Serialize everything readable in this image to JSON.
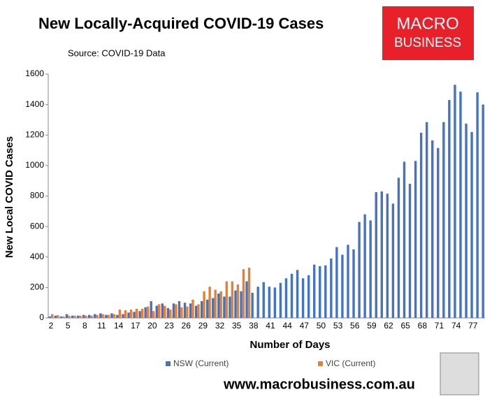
{
  "chart_data": {
    "type": "bar",
    "title": "New Locally-Acquired COVID-19 Cases",
    "subtitle": "Source: COVID-19 Data",
    "x_label": "Number of Days",
    "y_label": "New Local COVID Cases",
    "categories": [
      "2",
      null,
      null,
      "5",
      null,
      null,
      "8",
      null,
      null,
      "11",
      null,
      null,
      "14",
      null,
      null,
      "17",
      null,
      null,
      "20",
      null,
      null,
      "23",
      null,
      null,
      "26",
      null,
      null,
      "29",
      null,
      null,
      "32",
      null,
      null,
      "35",
      null,
      null,
      "38",
      null,
      null,
      "41",
      null,
      null,
      "44",
      null,
      null,
      "47",
      null,
      null,
      "50",
      null,
      null,
      "53",
      null,
      null,
      "56",
      null,
      null,
      "59",
      null,
      null,
      "62",
      null,
      null,
      "65",
      null,
      null,
      "68",
      null,
      null,
      "71",
      null,
      null,
      "74",
      null,
      null,
      "77",
      null,
      null
    ],
    "series": [
      {
        "name": "NSW (Current)",
        "color": "#4472c4",
        "values": [
          10,
          15,
          10,
          25,
          15,
          15,
          20,
          20,
          25,
          30,
          20,
          30,
          20,
          25,
          35,
          40,
          45,
          70,
          110,
          80,
          95,
          65,
          95,
          110,
          100,
          95,
          80,
          110,
          120,
          130,
          160,
          140,
          140,
          180,
          175,
          240,
          165,
          205,
          235,
          205,
          200,
          230,
          260,
          290,
          315,
          260,
          280,
          350,
          340,
          345,
          390,
          465,
          415,
          480,
          450,
          630,
          680,
          640,
          825,
          830,
          815,
          750,
          920,
          1025,
          880,
          1030,
          1215,
          1285,
          1165,
          1115,
          1285,
          1430,
          1530,
          1485,
          1275,
          1220,
          1480,
          1400
        ]
      },
      {
        "name": "VIC (Current)",
        "color": "#ed7d31",
        "values": [
          25,
          18,
          10,
          15,
          15,
          15,
          15,
          15,
          20,
          25,
          20,
          25,
          55,
          50,
          55,
          60,
          60,
          75,
          45,
          90,
          80,
          55,
          90,
          70,
          75,
          120,
          90,
          175,
          205,
          185,
          175,
          240,
          240,
          220,
          320,
          330,
          null,
          null,
          null,
          null,
          null,
          null,
          null,
          null,
          null,
          null,
          null,
          null,
          null,
          null,
          null,
          null,
          null,
          null,
          null,
          null,
          null,
          null,
          null,
          null,
          null,
          null,
          null,
          null,
          null,
          null,
          null,
          null,
          null,
          null,
          null,
          null,
          null,
          null,
          null,
          null,
          null,
          null
        ]
      }
    ],
    "ylim": [
      0,
      1600
    ],
    "yticks": [
      0,
      200,
      400,
      600,
      800,
      1000,
      1200,
      1400,
      1600
    ],
    "grid": false,
    "legend": "bottom",
    "logo": {
      "line1": "MACRO",
      "line2": "BUSINESS"
    },
    "footer": "www.macrobusiness.com.au"
  }
}
